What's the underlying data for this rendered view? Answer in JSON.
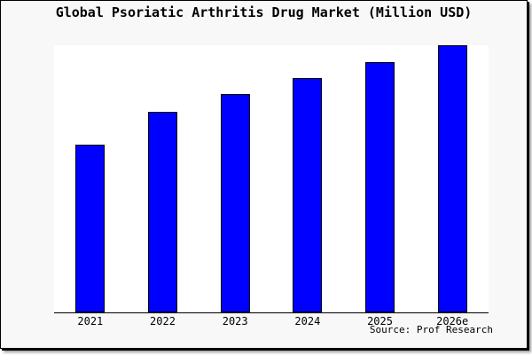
{
  "title": "Global Psoriatic Arthritis Drug Market (Million USD)",
  "source": "Source: Prof Research",
  "colors": {
    "bar": "#0000ff",
    "bar_border": "#000000",
    "card_background": "#f8f8f8",
    "plot_background": "#ffffff",
    "frame_border": "#000000",
    "text": "#000000"
  },
  "chart_data": {
    "type": "bar",
    "title": "Global Psoriatic Arthritis Drug Market (Million USD)",
    "categories": [
      "2021",
      "2022",
      "2023",
      "2024",
      "2025",
      "2026e"
    ],
    "values": [
      62.8,
      75.1,
      81.7,
      87.7,
      93.7,
      100
    ],
    "xlabel": "",
    "ylabel": "",
    "ylim": [
      0,
      100
    ],
    "y_axis": "hidden",
    "grid": false,
    "legend": "none",
    "annotations": [
      "Source: Prof Research"
    ]
  }
}
